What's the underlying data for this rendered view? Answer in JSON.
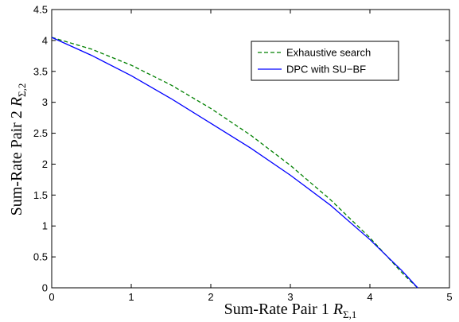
{
  "chart_data": {
    "type": "line",
    "xlabel": "Sum-Rate Pair 1",
    "xlabel_symbol": "R",
    "xlabel_subscript": "Σ,1",
    "ylabel": "Sum-Rate Pair 2",
    "ylabel_symbol": "R",
    "ylabel_subscript": "Σ,2",
    "xlim": [
      0,
      5
    ],
    "ylim": [
      0,
      4.5
    ],
    "xticks": [
      0,
      1,
      2,
      3,
      4,
      5
    ],
    "yticks": [
      0,
      0.5,
      1,
      1.5,
      2,
      2.5,
      3,
      3.5,
      4,
      4.5
    ],
    "grid": false,
    "legend_position": "top-right",
    "series": [
      {
        "name": "Exhaustive search",
        "color": "#008000",
        "style": "dashed",
        "x": [
          0,
          0.5,
          1.0,
          1.5,
          2.0,
          2.5,
          3.0,
          3.5,
          4.0,
          4.2,
          4.4,
          4.5,
          4.6
        ],
        "y": [
          4.05,
          3.86,
          3.6,
          3.28,
          2.9,
          2.47,
          1.98,
          1.43,
          0.81,
          0.53,
          0.25,
          0.12,
          0.0
        ]
      },
      {
        "name": "DPC with SU−BF",
        "color": "#0000ff",
        "style": "solid",
        "x": [
          0,
          0.5,
          1.0,
          1.5,
          2.0,
          2.5,
          3.0,
          3.5,
          4.0,
          4.2,
          4.4,
          4.5,
          4.6
        ],
        "y": [
          4.05,
          3.76,
          3.43,
          3.06,
          2.66,
          2.26,
          1.82,
          1.34,
          0.78,
          0.53,
          0.28,
          0.14,
          0.0
        ]
      }
    ]
  }
}
